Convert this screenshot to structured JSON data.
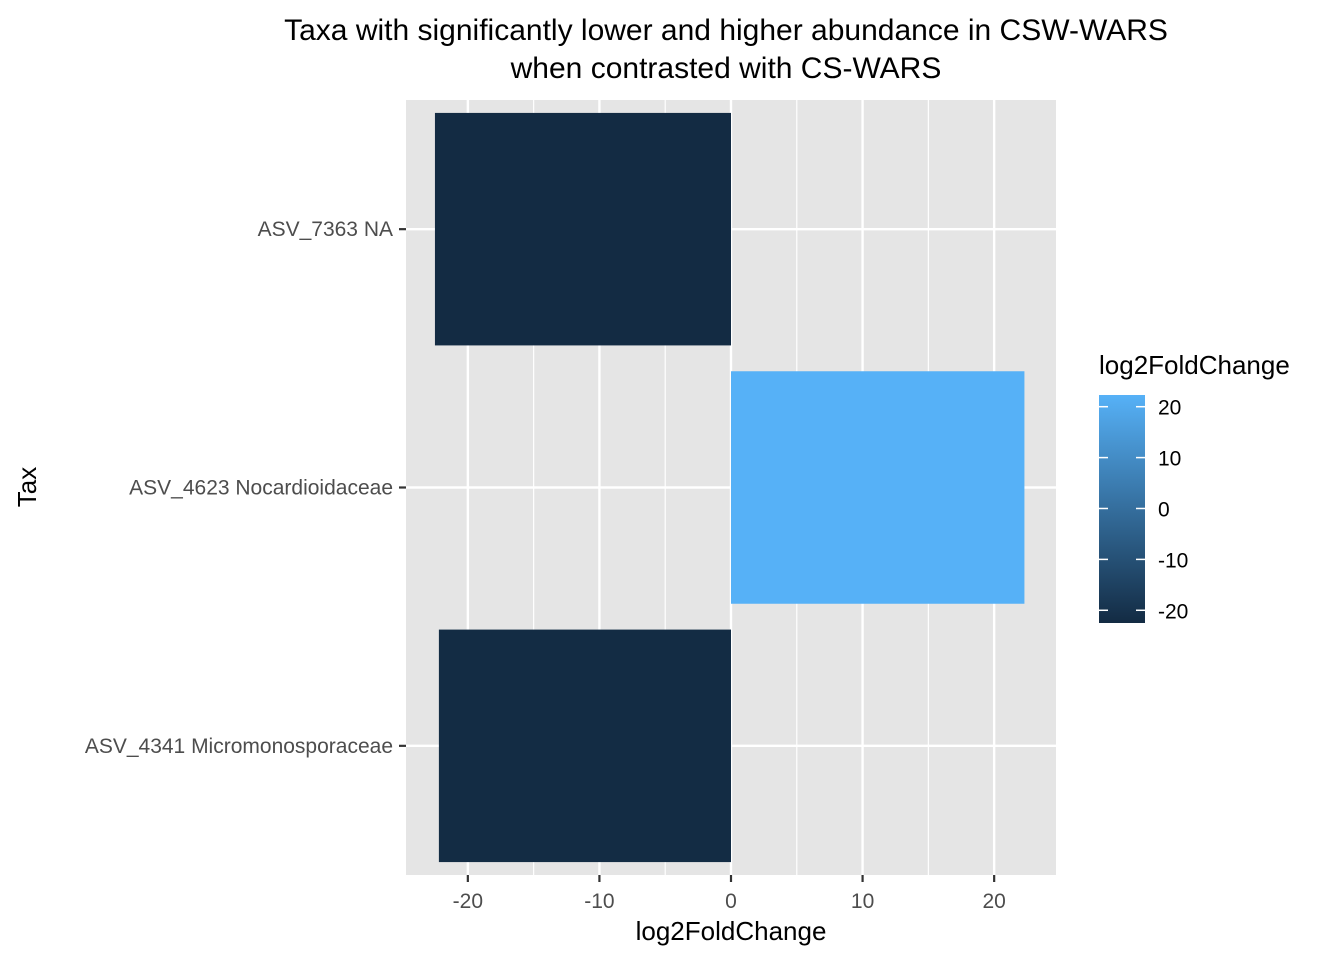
{
  "chart_data": {
    "type": "bar",
    "orientation": "horizontal",
    "title": "Taxa with significantly lower and higher abundance in CSW-WARS",
    "subtitle": "when contrasted with CS-WARS",
    "xlabel": "log2FoldChange",
    "ylabel": "Tax",
    "xlim": [
      -24.7,
      24.7
    ],
    "x_ticks": [
      -20,
      -10,
      0,
      10,
      20
    ],
    "x_tick_labels": [
      "-20",
      "-10",
      "0",
      "10",
      "20"
    ],
    "categories": [
      "ASV_7363 NA",
      "ASV_4623 Nocardioidaceae",
      "ASV_4341 Micromonosporaceae"
    ],
    "values": [
      -22.5,
      22.3,
      -22.2
    ],
    "grid": true,
    "panel_background": "#E5E5E5",
    "legend": {
      "title": "log2FoldChange",
      "position": "right",
      "type": "colorbar",
      "ticks": [
        20,
        10,
        0,
        -10,
        -20
      ],
      "tick_labels": [
        "20",
        "10",
        "0",
        "-10",
        "-20"
      ],
      "range": [
        -22.5,
        22.3
      ],
      "color_low": "#132B43",
      "color_high": "#56B1F7"
    }
  }
}
